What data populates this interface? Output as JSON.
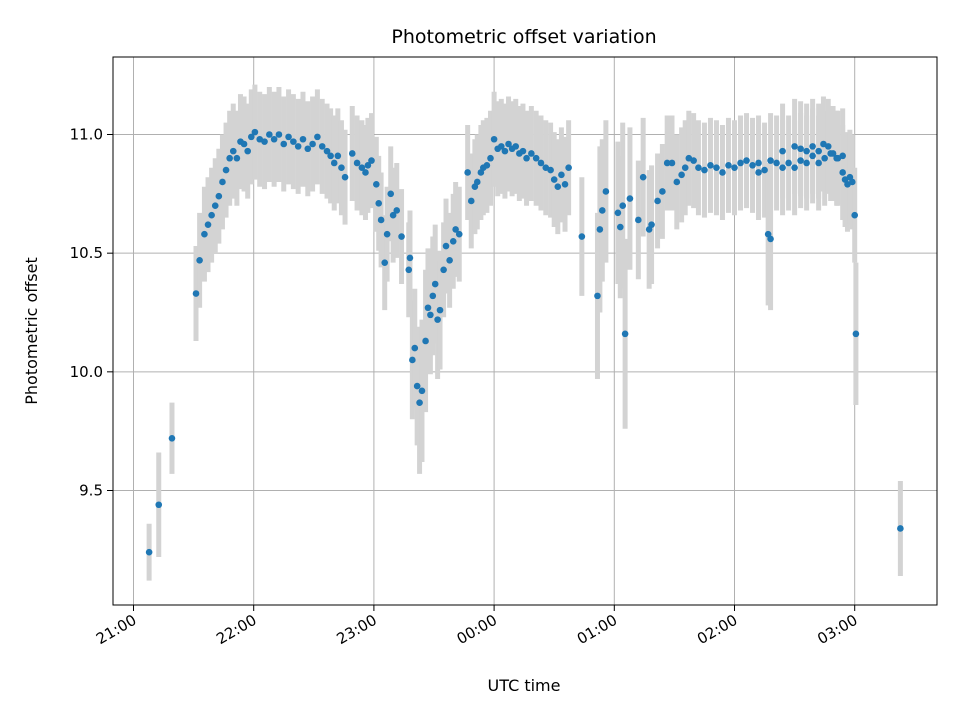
{
  "chart_data": {
    "type": "scatter",
    "title": "Photometric offset variation",
    "xlabel": "UTC time",
    "ylabel": "Photometric offset",
    "x_unit": "hours after 21:00 UTC",
    "xlim": [
      -0.17,
      6.7
    ],
    "ylim": [
      9.03,
      11.33
    ],
    "xticks": [
      {
        "value": 0,
        "label": "21:00"
      },
      {
        "value": 1,
        "label": "22:00"
      },
      {
        "value": 2,
        "label": "23:00"
      },
      {
        "value": 3,
        "label": "00:00"
      },
      {
        "value": 4,
        "label": "01:00"
      },
      {
        "value": 5,
        "label": "02:00"
      },
      {
        "value": 6,
        "label": "03:00"
      }
    ],
    "yticks": [
      {
        "value": 9.5,
        "label": "9.5"
      },
      {
        "value": 10.0,
        "label": "10.0"
      },
      {
        "value": 10.5,
        "label": "10.5"
      },
      {
        "value": 11.0,
        "label": "11.0"
      }
    ],
    "grid": true,
    "colors": {
      "points": "#1f77b4",
      "errorbars": "#d3d3d3",
      "grid": "#b0b0b0"
    },
    "points": [
      [
        0.13,
        9.24,
        0.12
      ],
      [
        0.21,
        9.44,
        0.22
      ],
      [
        0.32,
        9.72,
        0.15
      ],
      [
        0.52,
        10.33,
        0.2
      ],
      [
        0.55,
        10.47,
        0.2
      ],
      [
        0.59,
        10.58,
        0.2
      ],
      [
        0.62,
        10.62,
        0.2
      ],
      [
        0.65,
        10.66,
        0.2
      ],
      [
        0.68,
        10.7,
        0.2
      ],
      [
        0.71,
        10.74,
        0.2
      ],
      [
        0.74,
        10.8,
        0.2
      ],
      [
        0.77,
        10.85,
        0.2
      ],
      [
        0.8,
        10.9,
        0.2
      ],
      [
        0.83,
        10.93,
        0.2
      ],
      [
        0.86,
        10.9,
        0.2
      ],
      [
        0.89,
        10.97,
        0.2
      ],
      [
        0.92,
        10.96,
        0.2
      ],
      [
        0.95,
        10.93,
        0.2
      ],
      [
        0.98,
        10.99,
        0.2
      ],
      [
        1.01,
        11.01,
        0.2
      ],
      [
        1.05,
        10.98,
        0.2
      ],
      [
        1.09,
        10.97,
        0.2
      ],
      [
        1.13,
        11.0,
        0.2
      ],
      [
        1.17,
        10.98,
        0.2
      ],
      [
        1.21,
        11.0,
        0.2
      ],
      [
        1.25,
        10.96,
        0.2
      ],
      [
        1.29,
        10.99,
        0.2
      ],
      [
        1.33,
        10.97,
        0.2
      ],
      [
        1.37,
        10.95,
        0.2
      ],
      [
        1.41,
        10.98,
        0.2
      ],
      [
        1.45,
        10.94,
        0.2
      ],
      [
        1.49,
        10.96,
        0.2
      ],
      [
        1.53,
        10.99,
        0.2
      ],
      [
        1.57,
        10.95,
        0.2
      ],
      [
        1.61,
        10.93,
        0.2
      ],
      [
        1.64,
        10.91,
        0.2
      ],
      [
        1.67,
        10.88,
        0.2
      ],
      [
        1.7,
        10.91,
        0.2
      ],
      [
        1.73,
        10.86,
        0.2
      ],
      [
        1.76,
        10.82,
        0.2
      ],
      [
        1.82,
        10.92,
        0.2
      ],
      [
        1.86,
        10.88,
        0.2
      ],
      [
        1.9,
        10.86,
        0.2
      ],
      [
        1.93,
        10.84,
        0.2
      ],
      [
        1.95,
        10.87,
        0.2
      ],
      [
        1.98,
        10.89,
        0.2
      ],
      [
        2.02,
        10.79,
        0.2
      ],
      [
        2.04,
        10.71,
        0.2
      ],
      [
        2.06,
        10.64,
        0.2
      ],
      [
        2.09,
        10.46,
        0.2
      ],
      [
        2.11,
        10.58,
        0.2
      ],
      [
        2.14,
        10.75,
        0.2
      ],
      [
        2.16,
        10.66,
        0.2
      ],
      [
        2.19,
        10.68,
        0.2
      ],
      [
        2.23,
        10.57,
        0.2
      ],
      [
        2.29,
        10.43,
        0.2
      ],
      [
        2.3,
        10.48,
        0.2
      ],
      [
        2.32,
        10.05,
        0.25
      ],
      [
        2.34,
        10.1,
        0.25
      ],
      [
        2.36,
        9.94,
        0.25
      ],
      [
        2.38,
        9.87,
        0.3
      ],
      [
        2.4,
        9.92,
        0.3
      ],
      [
        2.43,
        10.13,
        0.3
      ],
      [
        2.45,
        10.27,
        0.25
      ],
      [
        2.47,
        10.24,
        0.25
      ],
      [
        2.49,
        10.32,
        0.25
      ],
      [
        2.51,
        10.37,
        0.25
      ],
      [
        2.53,
        10.22,
        0.25
      ],
      [
        2.55,
        10.26,
        0.25
      ],
      [
        2.58,
        10.43,
        0.2
      ],
      [
        2.6,
        10.53,
        0.2
      ],
      [
        2.63,
        10.47,
        0.2
      ],
      [
        2.66,
        10.55,
        0.2
      ],
      [
        2.68,
        10.6,
        0.2
      ],
      [
        2.71,
        10.58,
        0.2
      ],
      [
        2.78,
        10.84,
        0.2
      ],
      [
        2.81,
        10.72,
        0.2
      ],
      [
        2.84,
        10.78,
        0.2
      ],
      [
        2.86,
        10.8,
        0.2
      ],
      [
        2.89,
        10.84,
        0.2
      ],
      [
        2.91,
        10.86,
        0.2
      ],
      [
        2.94,
        10.87,
        0.2
      ],
      [
        2.97,
        10.9,
        0.2
      ],
      [
        3.0,
        10.98,
        0.2
      ],
      [
        3.03,
        10.94,
        0.2
      ],
      [
        3.06,
        10.95,
        0.2
      ],
      [
        3.09,
        10.93,
        0.2
      ],
      [
        3.12,
        10.96,
        0.2
      ],
      [
        3.15,
        10.94,
        0.2
      ],
      [
        3.18,
        10.95,
        0.2
      ],
      [
        3.21,
        10.92,
        0.2
      ],
      [
        3.24,
        10.93,
        0.2
      ],
      [
        3.27,
        10.9,
        0.2
      ],
      [
        3.31,
        10.92,
        0.2
      ],
      [
        3.35,
        10.9,
        0.2
      ],
      [
        3.39,
        10.88,
        0.2
      ],
      [
        3.43,
        10.86,
        0.2
      ],
      [
        3.47,
        10.85,
        0.2
      ],
      [
        3.5,
        10.81,
        0.2
      ],
      [
        3.53,
        10.78,
        0.2
      ],
      [
        3.56,
        10.83,
        0.2
      ],
      [
        3.59,
        10.79,
        0.2
      ],
      [
        3.62,
        10.86,
        0.2
      ],
      [
        3.73,
        10.57,
        0.25
      ],
      [
        3.86,
        10.32,
        0.35
      ],
      [
        3.88,
        10.6,
        0.35
      ],
      [
        3.9,
        10.68,
        0.3
      ],
      [
        3.93,
        10.76,
        0.3
      ],
      [
        4.03,
        10.67,
        0.3
      ],
      [
        4.05,
        10.61,
        0.3
      ],
      [
        4.07,
        10.7,
        0.35
      ],
      [
        4.09,
        10.16,
        0.4
      ],
      [
        4.13,
        10.73,
        0.3
      ],
      [
        4.2,
        10.64,
        0.25
      ],
      [
        4.24,
        10.82,
        0.25
      ],
      [
        4.29,
        10.6,
        0.25
      ],
      [
        4.31,
        10.62,
        0.25
      ],
      [
        4.36,
        10.72,
        0.2
      ],
      [
        4.4,
        10.76,
        0.2
      ],
      [
        4.44,
        10.88,
        0.2
      ],
      [
        4.48,
        10.88,
        0.2
      ],
      [
        4.52,
        10.8,
        0.2
      ],
      [
        4.56,
        10.83,
        0.2
      ],
      [
        4.59,
        10.86,
        0.2
      ],
      [
        4.62,
        10.9,
        0.2
      ],
      [
        4.66,
        10.89,
        0.2
      ],
      [
        4.7,
        10.86,
        0.2
      ],
      [
        4.75,
        10.85,
        0.2
      ],
      [
        4.8,
        10.87,
        0.2
      ],
      [
        4.85,
        10.86,
        0.2
      ],
      [
        4.9,
        10.84,
        0.2
      ],
      [
        4.95,
        10.87,
        0.2
      ],
      [
        5.0,
        10.86,
        0.2
      ],
      [
        5.05,
        10.88,
        0.2
      ],
      [
        5.1,
        10.89,
        0.2
      ],
      [
        5.15,
        10.87,
        0.2
      ],
      [
        5.2,
        10.88,
        0.2
      ],
      [
        5.25,
        10.85,
        0.2
      ],
      [
        5.3,
        10.89,
        0.2
      ],
      [
        5.35,
        10.88,
        0.2
      ],
      [
        5.4,
        10.86,
        0.2
      ],
      [
        5.45,
        10.88,
        0.2
      ],
      [
        5.5,
        10.86,
        0.2
      ],
      [
        5.55,
        10.89,
        0.2
      ],
      [
        5.6,
        10.88,
        0.2
      ],
      [
        5.65,
        10.91,
        0.2
      ],
      [
        5.7,
        10.88,
        0.2
      ],
      [
        5.75,
        10.9,
        0.2
      ],
      [
        5.8,
        10.92,
        0.2
      ],
      [
        5.85,
        10.9,
        0.2
      ],
      [
        5.2,
        10.84,
        0.2
      ],
      [
        5.28,
        10.58,
        0.3
      ],
      [
        5.3,
        10.56,
        0.3
      ],
      [
        5.4,
        10.93,
        0.2
      ],
      [
        5.5,
        10.95,
        0.2
      ],
      [
        5.55,
        10.94,
        0.2
      ],
      [
        5.6,
        10.93,
        0.2
      ],
      [
        5.65,
        10.95,
        0.2
      ],
      [
        5.7,
        10.93,
        0.2
      ],
      [
        5.74,
        10.96,
        0.2
      ],
      [
        5.78,
        10.95,
        0.2
      ],
      [
        5.82,
        10.92,
        0.2
      ],
      [
        5.86,
        10.9,
        0.2
      ],
      [
        5.9,
        10.91,
        0.2
      ],
      [
        5.9,
        10.84,
        0.2
      ],
      [
        5.92,
        10.81,
        0.2
      ],
      [
        5.94,
        10.79,
        0.2
      ],
      [
        5.96,
        10.82,
        0.2
      ],
      [
        5.98,
        10.8,
        0.2
      ],
      [
        6.0,
        10.66,
        0.2
      ],
      [
        6.01,
        10.16,
        0.3
      ],
      [
        6.38,
        9.34,
        0.2
      ]
    ]
  }
}
